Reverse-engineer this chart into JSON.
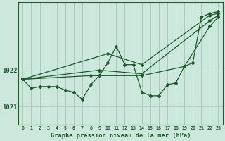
{
  "background_color": "#cce8dc",
  "grid_color": "#aacfbf",
  "line_color": "#1a5c2a",
  "title": "Graphe pression niveau de la mer (hPa)",
  "xlim": [
    -0.5,
    23.5
  ],
  "ylim": [
    1020.5,
    1023.85
  ],
  "yticks": [
    1021,
    1022
  ],
  "xticks": [
    0,
    1,
    2,
    3,
    4,
    5,
    6,
    7,
    8,
    9,
    10,
    11,
    12,
    13,
    14,
    15,
    16,
    17,
    18,
    19,
    20,
    21,
    22,
    23
  ],
  "wiggly": {
    "x": [
      0,
      1,
      2,
      3,
      4,
      5,
      6,
      7,
      8,
      9,
      10,
      11,
      12,
      13,
      14,
      15,
      16,
      17,
      18,
      19,
      20,
      21,
      22,
      23
    ],
    "y": [
      1021.75,
      1021.5,
      1021.55,
      1021.55,
      1021.55,
      1021.45,
      1021.4,
      1021.2,
      1021.6,
      1021.85,
      1022.2,
      1022.65,
      1022.15,
      1022.15,
      1021.4,
      1021.3,
      1021.3,
      1021.6,
      1021.65,
      1022.1,
      1022.2,
      1023.45,
      1023.55,
      1023.6
    ]
  },
  "smooth1": {
    "x": [
      0,
      10,
      14,
      22,
      23
    ],
    "y": [
      1021.75,
      1022.45,
      1022.15,
      1023.5,
      1023.55
    ]
  },
  "smooth2": {
    "x": [
      0,
      9,
      14,
      22,
      23
    ],
    "y": [
      1021.75,
      1022.0,
      1021.9,
      1023.35,
      1023.5
    ]
  },
  "smooth3": {
    "x": [
      0,
      8,
      14,
      19,
      22,
      23
    ],
    "y": [
      1021.75,
      1021.85,
      1021.85,
      1022.1,
      1023.2,
      1023.45
    ]
  }
}
